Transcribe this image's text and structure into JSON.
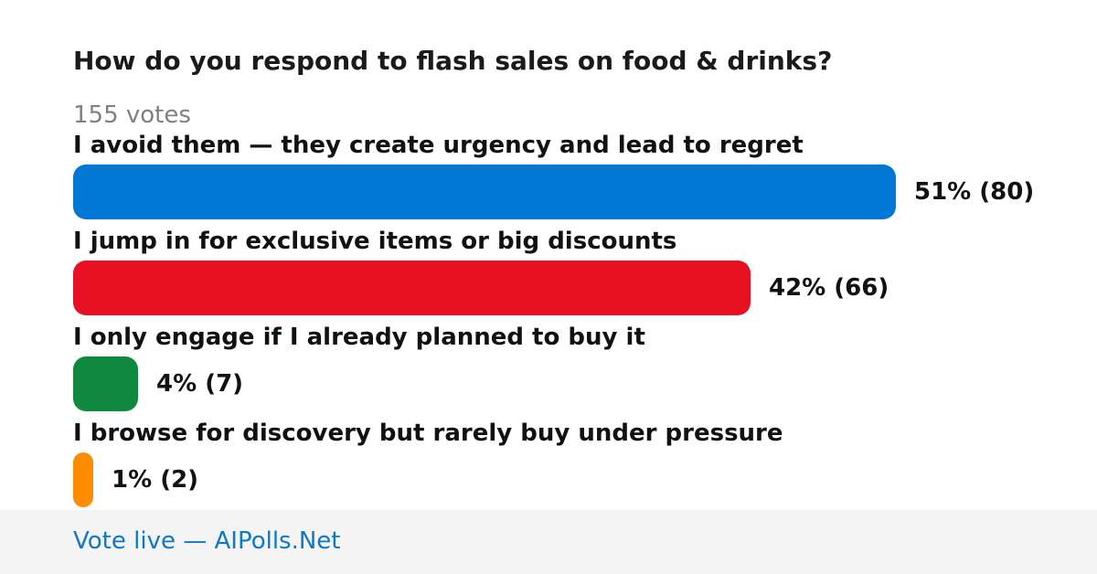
{
  "poll": {
    "question": "How do you respond to flash sales on food & drinks?",
    "votes_label": "155 votes"
  },
  "chart_data": {
    "type": "bar",
    "orientation": "horizontal",
    "title": "How do you respond to flash sales on food & drinks?",
    "total_votes": 155,
    "categories": [
      "I avoid them — they create urgency and lead to regret",
      "I jump in for exclusive items or big discounts",
      "I only engage if I already planned to buy it",
      "I browse for discovery but rarely buy under pressure"
    ],
    "options": [
      {
        "label": "I avoid them — they create urgency and lead to regret",
        "percent": 51,
        "votes": 80,
        "result_label": "51% (80)",
        "color": "#0277d4"
      },
      {
        "label": "I jump in for exclusive items or big discounts",
        "percent": 42,
        "votes": 66,
        "result_label": "42% (66)",
        "color": "#e81123"
      },
      {
        "label": "I only engage if I already planned to buy it",
        "percent": 4,
        "votes": 7,
        "result_label": "4% (7)",
        "color": "#10893e"
      },
      {
        "label": "I browse for discovery but rarely buy under pressure",
        "percent": 1,
        "votes": 2,
        "result_label": "1% (2)",
        "color": "#ff8c00"
      }
    ]
  },
  "footer": {
    "link_text": "Vote live — AIPolls.Net"
  }
}
